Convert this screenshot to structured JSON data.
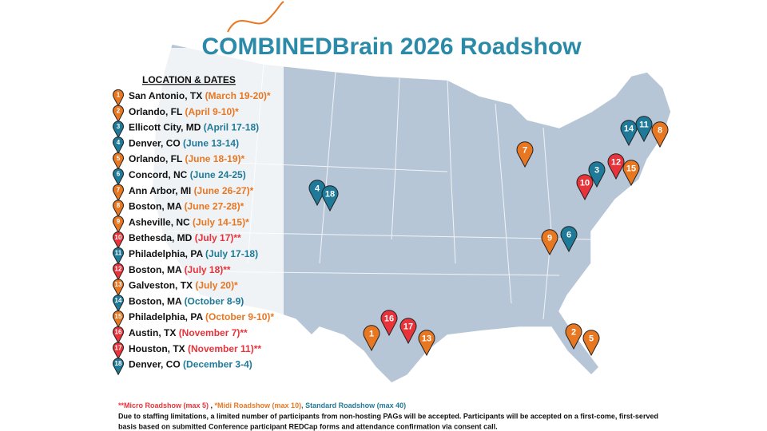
{
  "title": "COMBINEDBrain 2026 Roadshow",
  "list_heading": "LOCATION & DATES",
  "events": [
    {
      "number": "1",
      "location": "San Antonio, TX",
      "dates": "(March 19-20)*",
      "color": "#e87722"
    },
    {
      "number": "2",
      "location": "Orlando, FL",
      "dates": "(April 9-10)*",
      "color": "#e87722"
    },
    {
      "number": "3",
      "location": "Ellicott City, MD",
      "dates": "(April 17-18)",
      "color": "#1f7a99"
    },
    {
      "number": "4",
      "location": "Denver, CO",
      "dates": "(June 13-14)",
      "color": "#1f7a99"
    },
    {
      "number": "5",
      "location": "Orlando, FL",
      "dates": "(June 18-19)*",
      "color": "#e87722"
    },
    {
      "number": "6",
      "location": "Concord, NC",
      "dates": "(June 24-25)",
      "color": "#1f7a99"
    },
    {
      "number": "7",
      "location": "Ann Arbor, MI",
      "dates": "(June 26-27)*",
      "color": "#e87722"
    },
    {
      "number": "8",
      "location": "Boston, MA",
      "dates": "(June 27-28)*",
      "color": "#e87722"
    },
    {
      "number": "9",
      "location": "Asheville, NC",
      "dates": "(July 14-15)*",
      "color": "#e87722"
    },
    {
      "number": "10",
      "location": "Bethesda, MD",
      "dates": "(July 17)**",
      "color": "#e8333a"
    },
    {
      "number": "11",
      "location": "Philadelphia, PA",
      "dates": "(July 17-18)",
      "color": "#1f7a99"
    },
    {
      "number": "12",
      "location": "Boston, MA",
      "dates": "(July 18)**",
      "color": "#e8333a"
    },
    {
      "number": "13",
      "location": "Galveston, TX",
      "dates": "(July 20)*",
      "color": "#e87722"
    },
    {
      "number": "14",
      "location": "Boston, MA",
      "dates": "(October 8-9)",
      "color": "#1f7a99"
    },
    {
      "number": "15",
      "location": "Philadelphia, PA",
      "dates": "(October 9-10)*",
      "color": "#e87722"
    },
    {
      "number": "16",
      "location": "Austin, TX",
      "dates": "(November 7)**",
      "color": "#e8333a"
    },
    {
      "number": "17",
      "location": "Houston, TX",
      "dates": "(November 11)**",
      "color": "#e8333a"
    },
    {
      "number": "18",
      "location": "Denver, CO",
      "dates": "(December 3-4)",
      "color": "#1f7a99"
    }
  ],
  "legend": [
    {
      "text": "**Micro Roadshow (max 5)",
      "color": "#e8333a"
    },
    {
      "text": " , ",
      "color": "#222222"
    },
    {
      "text": "*Midi Roadshow (max 10)",
      "color": "#e87722"
    },
    {
      "text": ", Standard Roadshow (max 40)",
      "color": "#1f7a99"
    }
  ],
  "note": [
    "Due to staffing limitations, a limited number of participants from non-hosting PAGs will be accepted. Participants will be accepted on a first-come, first-served",
    "basis based on submitted Conference participant REDCap forms and attendance confirmation via consent call."
  ]
}
